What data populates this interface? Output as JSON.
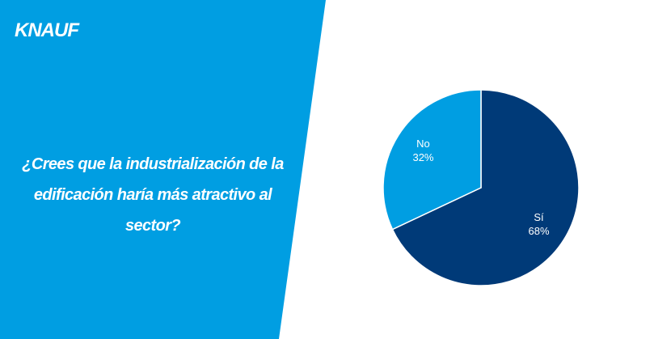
{
  "brand": "KNAUF",
  "chart_data": {
    "type": "pie",
    "title": "¿Crees que la industrialización de la edificación haría más atractivo al sector?",
    "categories": [
      "Sí",
      "No"
    ],
    "values": [
      68,
      32
    ],
    "value_labels": [
      "68%",
      "32%"
    ],
    "colors": [
      "#003a78",
      "#009ee2"
    ]
  }
}
